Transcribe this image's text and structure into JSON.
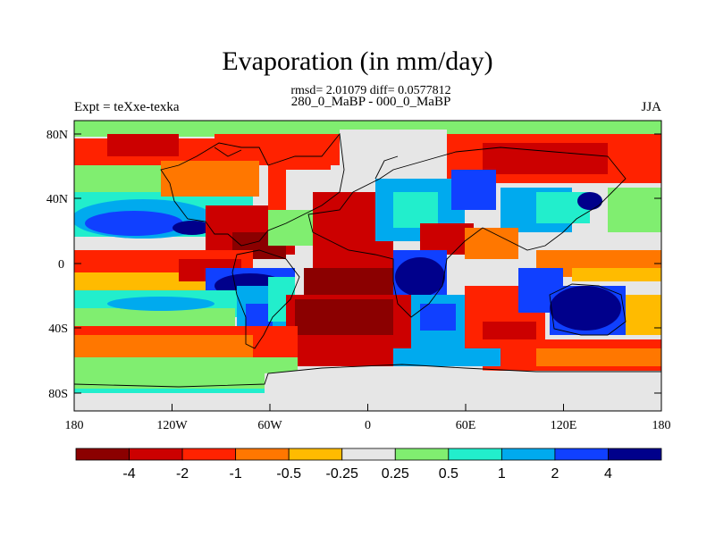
{
  "title": "Evaporation (in mm/day)",
  "stats": "rmsd= 2.01079 diff= 0.0577812",
  "subtitle": "280_0_MaBP - 000_0_MaBP",
  "experiment": "Expt = teXxe-texka",
  "season": "JJA",
  "y_ticks": [
    "80N",
    "40N",
    "0",
    "40S",
    "80S"
  ],
  "x_ticks": [
    "180",
    "120W",
    "60W",
    "0",
    "60E",
    "120E",
    "180"
  ],
  "colorbar": {
    "colors": [
      "#8b0000",
      "#cc0000",
      "#ff2200",
      "#ff7700",
      "#ffbb00",
      "#e6e6e6",
      "#80ee70",
      "#22eecc",
      "#00aaee",
      "#1040ff",
      "#00008b"
    ],
    "labels": [
      "-4",
      "-2",
      "-1",
      "-0.5",
      "-0.25",
      "0.25",
      "0.5",
      "1",
      "2",
      "4"
    ]
  },
  "map_data": {
    "type": "heatmap",
    "lon_range": [
      -180,
      180
    ],
    "lat_range": [
      -90,
      90
    ],
    "fields": [
      {
        "region": "Southern Ocean band 40S-60S",
        "level": "-2 to -1"
      },
      {
        "region": "South Atlantic 20S-50S",
        "level": "< -4"
      },
      {
        "region": "Australia",
        "level": "> 4"
      },
      {
        "region": "East Pacific equatorial",
        "level": "2 to 4"
      },
      {
        "region": "North Pacific high latitudes",
        "level": "-2 to -1"
      },
      {
        "region": "Antarctica",
        "level": "-0.25 to 0.25"
      }
    ]
  }
}
